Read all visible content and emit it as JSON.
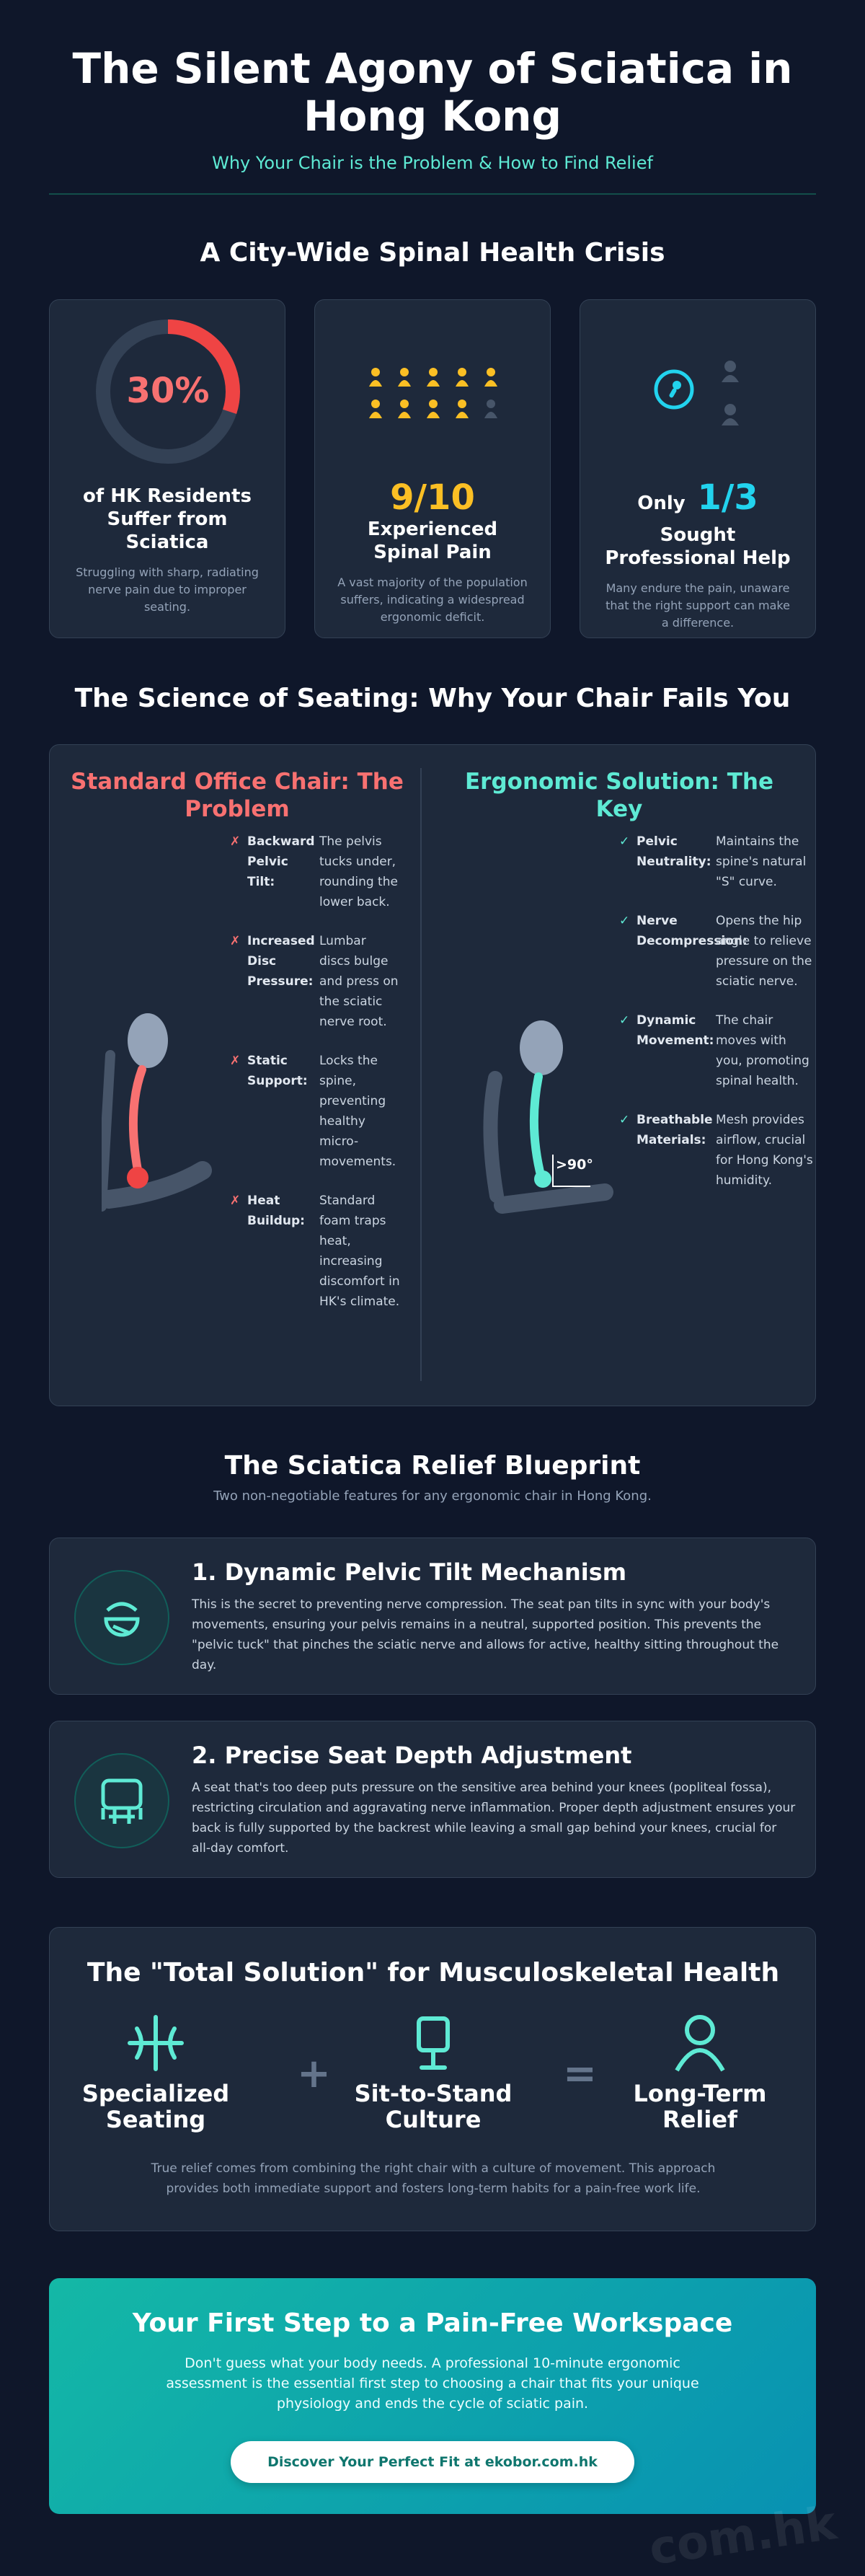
{
  "header": {
    "title": "The Silent Agony of Sciatica in Hong Kong",
    "subtitle": "Why Your Chair is the Problem & How to Find Relief"
  },
  "crisis": {
    "heading": "A City-Wide Spinal Health Crisis",
    "cards": [
      {
        "stat": {
          "value": 30,
          "label": "30%"
        },
        "title": "of HK Residents Suffer from Sciatica",
        "text": "Struggling with sharp, radiating nerve pain due to improper seating."
      },
      {
        "stat": "9/10",
        "title": "Experienced Spinal Pain",
        "text": "A vast majority of the population suffers, indicating a widespread ergonomic deficit."
      },
      {
        "prefix": "Only",
        "stat": "1/3",
        "title": "Sought Professional Help",
        "text": "Many endure the pain, unaware that the right support can make a difference."
      }
    ]
  },
  "science": {
    "heading": "The Science of Seating: Why Your Chair Fails You",
    "problem": {
      "title": "Standard Office Chair: The Problem",
      "marker": "✗",
      "items": [
        {
          "label": "Backward Pelvic Tilt:",
          "text": "The pelvis tucks under, rounding the lower back."
        },
        {
          "label": "Increased Disc Pressure:",
          "text": "Lumbar discs bulge and press on the sciatic nerve root."
        },
        {
          "label": "Static Support:",
          "text": "Locks the spine, preventing healthy micro-movements."
        },
        {
          "label": "Heat Buildup:",
          "text": "Standard foam traps heat, increasing discomfort in HK's climate."
        }
      ]
    },
    "solution": {
      "title": "Ergonomic Solution: The Key",
      "marker": "✓",
      "angle_label": ">90°",
      "items": [
        {
          "label": "Pelvic Neutrality:",
          "text": "Maintains the spine's natural \"S\" curve."
        },
        {
          "label": "Nerve Decompression:",
          "text": "Opens the hip angle to relieve pressure on the sciatic nerve."
        },
        {
          "label": "Dynamic Movement:",
          "text": "The chair moves with you, promoting spinal health."
        },
        {
          "label": "Breathable Materials:",
          "text": "Mesh provides airflow, crucial for Hong Kong's humidity."
        }
      ]
    }
  },
  "blueprint": {
    "heading": "The Sciatica Relief Blueprint",
    "subtitle": "Two non-negotiable features for any ergonomic chair in Hong Kong.",
    "features": [
      {
        "title": "1. Dynamic Pelvic Tilt Mechanism",
        "text": "This is the secret to preventing nerve compression. The seat pan tilts in sync with your body's movements, ensuring your pelvis remains in a neutral, supported position. This prevents the \"pelvic tuck\" that pinches the sciatic nerve and allows for active, healthy sitting throughout the day."
      },
      {
        "title": "2. Precise Seat Depth Adjustment",
        "text": "A seat that's too deep puts pressure on the sensitive area behind your knees (popliteal fossa), restricting circulation and aggravating nerve inflammation. Proper depth adjustment ensures your back is fully supported by the backrest while leaving a small gap behind your knees, crucial for all-day comfort."
      }
    ]
  },
  "total": {
    "heading": "The \"Total Solution\" for Musculoskeletal Health",
    "items": [
      "Specialized Seating",
      "Sit-to-Stand Culture",
      "Long-Term Relief"
    ],
    "operators": [
      "+",
      "="
    ],
    "text": "True relief comes from combining the right chair with a culture of movement. This approach provides both immediate support and fosters long-term habits for a pain-free work life."
  },
  "cta": {
    "title": "Your First Step to a Pain-Free Workspace",
    "text": "Don't guess what your body needs. A professional 10-minute ergonomic assessment is the essential first step to choosing a chair that fits your unique physiology and ends the cycle of sciatic pain.",
    "button": "Discover Your Perfect Fit at ekobor.com.hk"
  },
  "watermark": "com.hk"
}
